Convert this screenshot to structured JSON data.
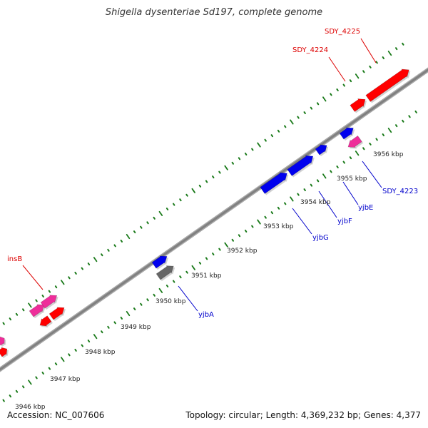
{
  "title": "Shigella dysenteriae Sd197, complete genome",
  "footer": {
    "accession": "Accession: NC_007606",
    "summary": "Topology: circular; Length: 4,369,232 bp; Genes: 4,377"
  },
  "colors": {
    "backbone": "#808080",
    "tick": "#1a7a1a",
    "ruler_text": "#222222",
    "gene_red": "#ff0000",
    "gene_blue": "#0000ee",
    "gene_pink": "#ee2e9a",
    "gene_gray": "#666666",
    "label_red": "#dd0000",
    "label_blue": "#0000cc"
  },
  "ruler_labels": [
    "3946 kbp",
    "3947 kbp",
    "3948 kbp",
    "3949 kbp",
    "3950 kbp",
    "3951 kbp",
    "3952 kbp",
    "3953 kbp",
    "3954 kbp",
    "3955 kbp",
    "3956 kbp"
  ],
  "gene_labels": [
    {
      "text": "SDY_4225",
      "color": "label_red"
    },
    {
      "text": "SDY_4224",
      "color": "label_red"
    },
    {
      "text": "insB",
      "color": "label_red"
    },
    {
      "text": "SDY_4223",
      "color": "label_blue"
    },
    {
      "text": "yjbE",
      "color": "label_blue"
    },
    {
      "text": "yjbF",
      "color": "label_blue"
    },
    {
      "text": "yjbG",
      "color": "label_blue"
    },
    {
      "text": "yjbA",
      "color": "label_blue"
    }
  ]
}
